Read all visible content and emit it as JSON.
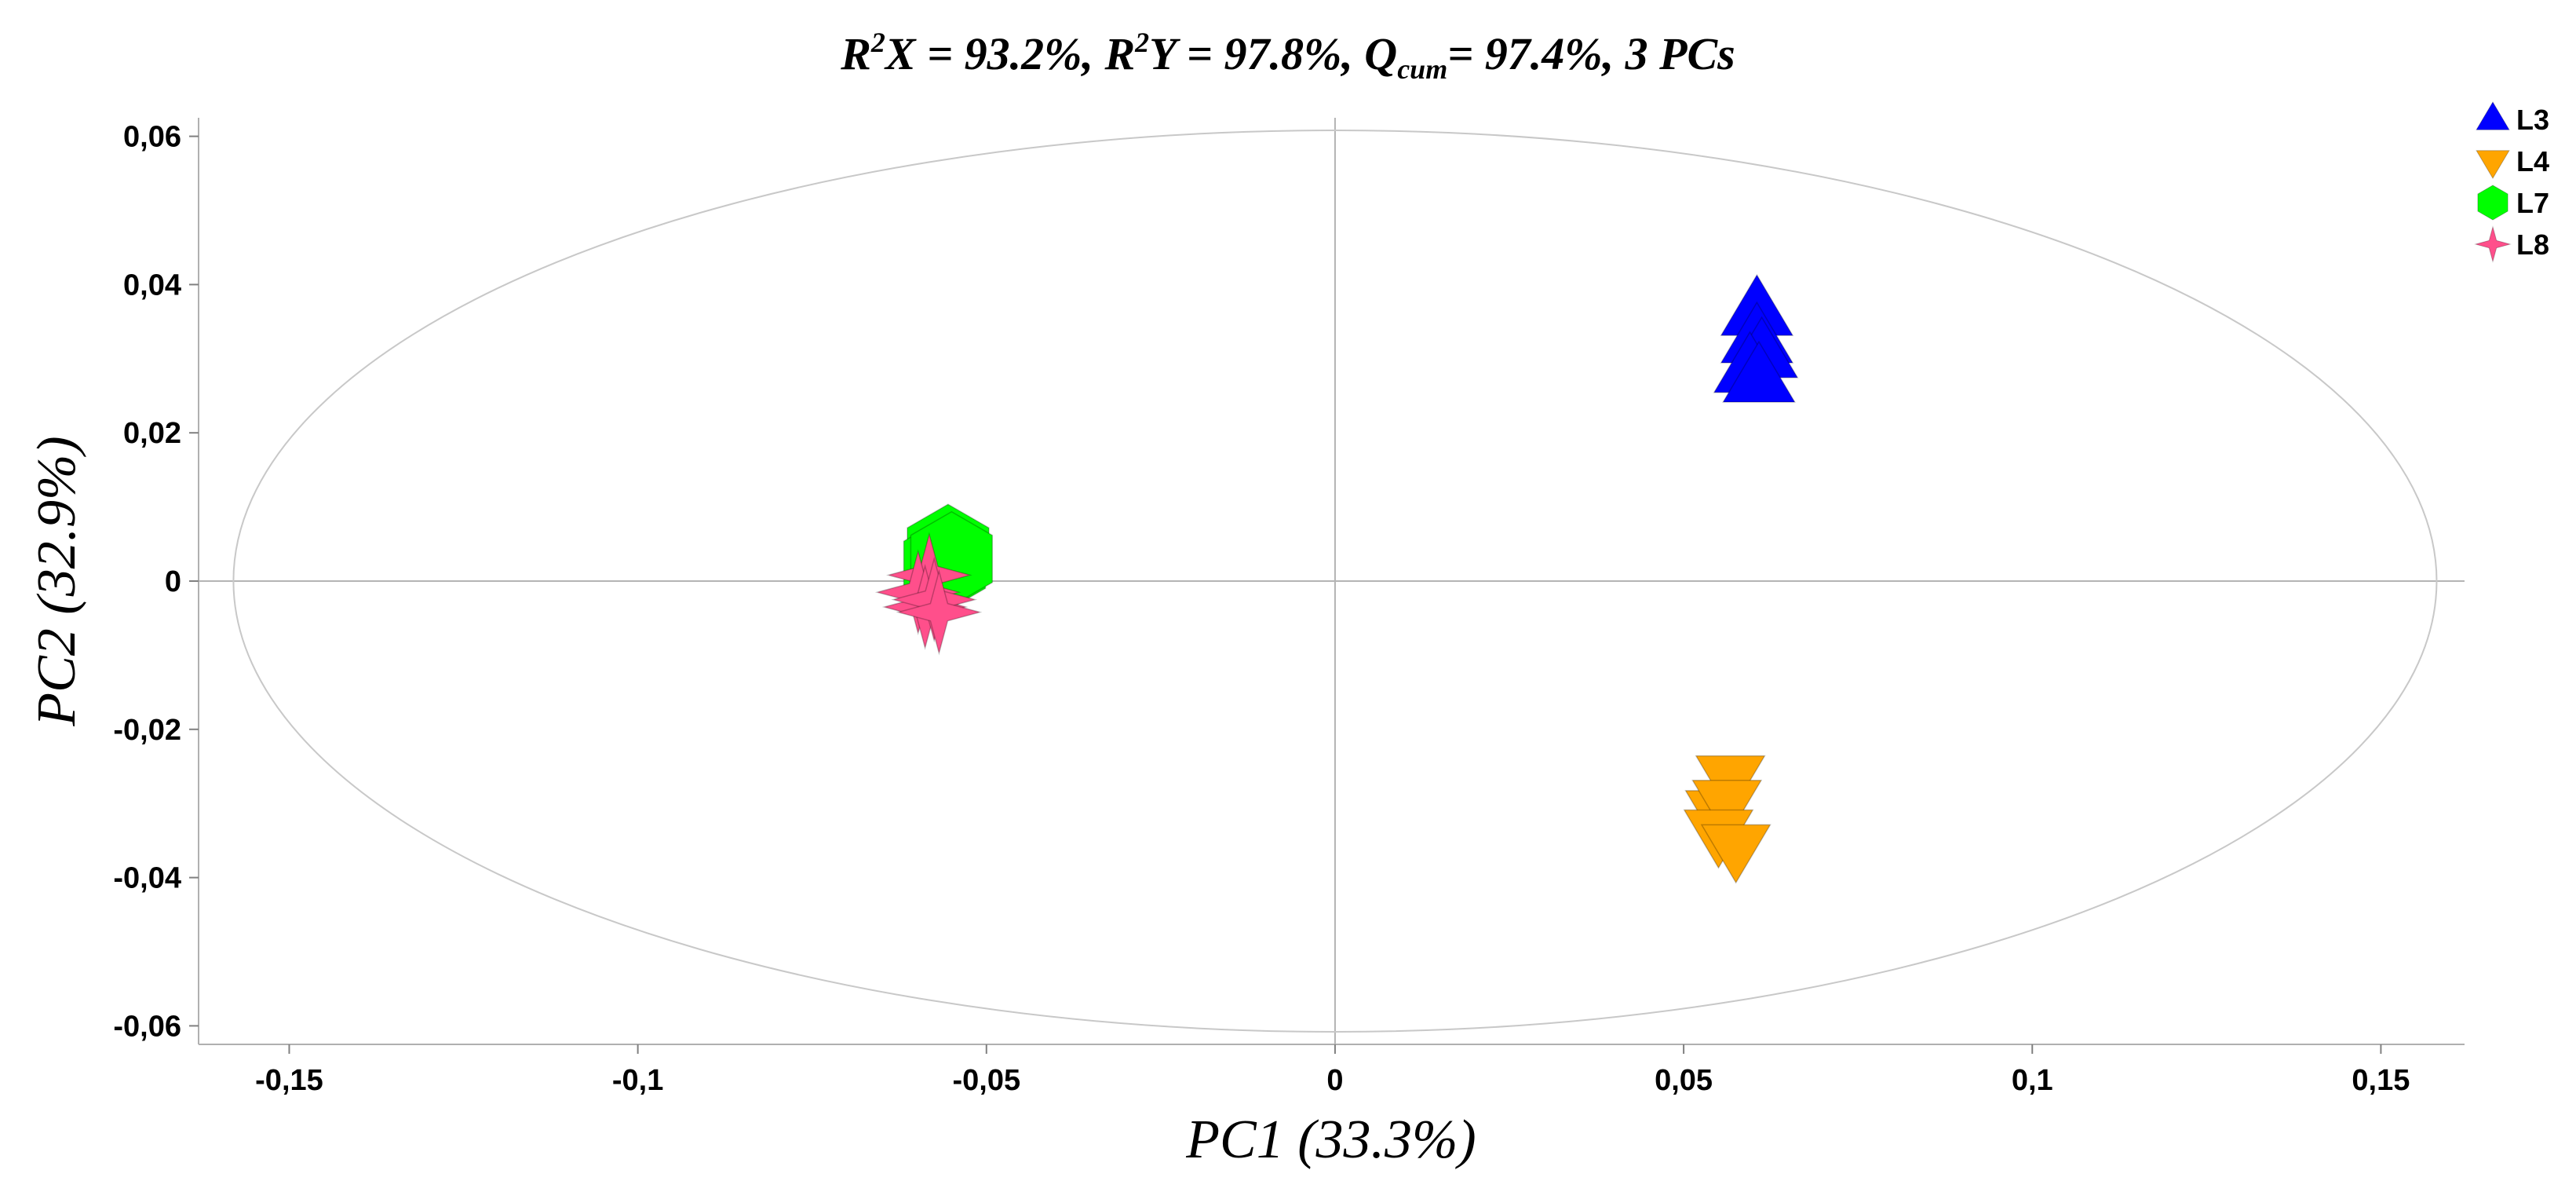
{
  "chart_data": {
    "type": "scatter",
    "title": {
      "r2x_prefix": "R",
      "r2x_sup": "2",
      "r2x_rest": "X = 93.2%, ",
      "r2y_prefix": "R",
      "r2y_sup": "2",
      "r2y_rest": "Y = 97.8%, ",
      "q_prefix": "Q",
      "q_sub": "cum",
      "q_rest": "= 97.4%, 3 PCs"
    },
    "xlabel": "PC1 (33.3%)",
    "ylabel": "PC2 (32.9%)",
    "xlim": [
      -0.163,
      0.162
    ],
    "ylim": [
      -0.0625,
      0.0625
    ],
    "xticks": [
      {
        "value": -0.15,
        "label": "-0,15"
      },
      {
        "value": -0.1,
        "label": "-0,1"
      },
      {
        "value": -0.05,
        "label": "-0,05"
      },
      {
        "value": 0,
        "label": "0"
      },
      {
        "value": 0.05,
        "label": "0,05"
      },
      {
        "value": 0.1,
        "label": "0,1"
      },
      {
        "value": 0.15,
        "label": "0,15"
      }
    ],
    "yticks": [
      {
        "value": 0.06,
        "label": "0,06"
      },
      {
        "value": 0.04,
        "label": "0,04"
      },
      {
        "value": 0.02,
        "label": "0,02"
      },
      {
        "value": 0,
        "label": "0"
      },
      {
        "value": -0.02,
        "label": "-0,02"
      },
      {
        "value": -0.04,
        "label": "-0,04"
      },
      {
        "value": -0.06,
        "label": "-0,06"
      }
    ],
    "ellipse": {
      "rx": 0.158,
      "ry": 0.0608
    },
    "legend_position": "top-right",
    "series": [
      {
        "name": "L3",
        "marker": "triangle-up",
        "color": "#0000ff",
        "points": [
          [
            0.0605,
            0.0362
          ],
          [
            0.0605,
            0.0325
          ],
          [
            0.0612,
            0.0305
          ],
          [
            0.0595,
            0.0285
          ],
          [
            0.0608,
            0.0272
          ]
        ]
      },
      {
        "name": "L4",
        "marker": "triangle-down",
        "color": "#ffa500",
        "points": [
          [
            0.0567,
            -0.0265
          ],
          [
            0.0552,
            -0.0312
          ],
          [
            0.0562,
            -0.0298
          ],
          [
            0.055,
            -0.0338
          ],
          [
            0.0575,
            -0.0358
          ]
        ]
      },
      {
        "name": "L7",
        "marker": "hexagon",
        "color": "#00ff00",
        "points": [
          [
            -0.0555,
            0.004
          ],
          [
            -0.056,
            0.0022
          ],
          [
            -0.055,
            0.003
          ]
        ]
      },
      {
        "name": "L8",
        "marker": "star4",
        "color": "#ff4f8b",
        "points": [
          [
            -0.0582,
            0.0008
          ],
          [
            -0.0598,
            -0.0015
          ],
          [
            -0.0588,
            -0.0035
          ],
          [
            -0.0575,
            -0.0025
          ],
          [
            -0.0568,
            -0.0042
          ]
        ]
      }
    ]
  }
}
